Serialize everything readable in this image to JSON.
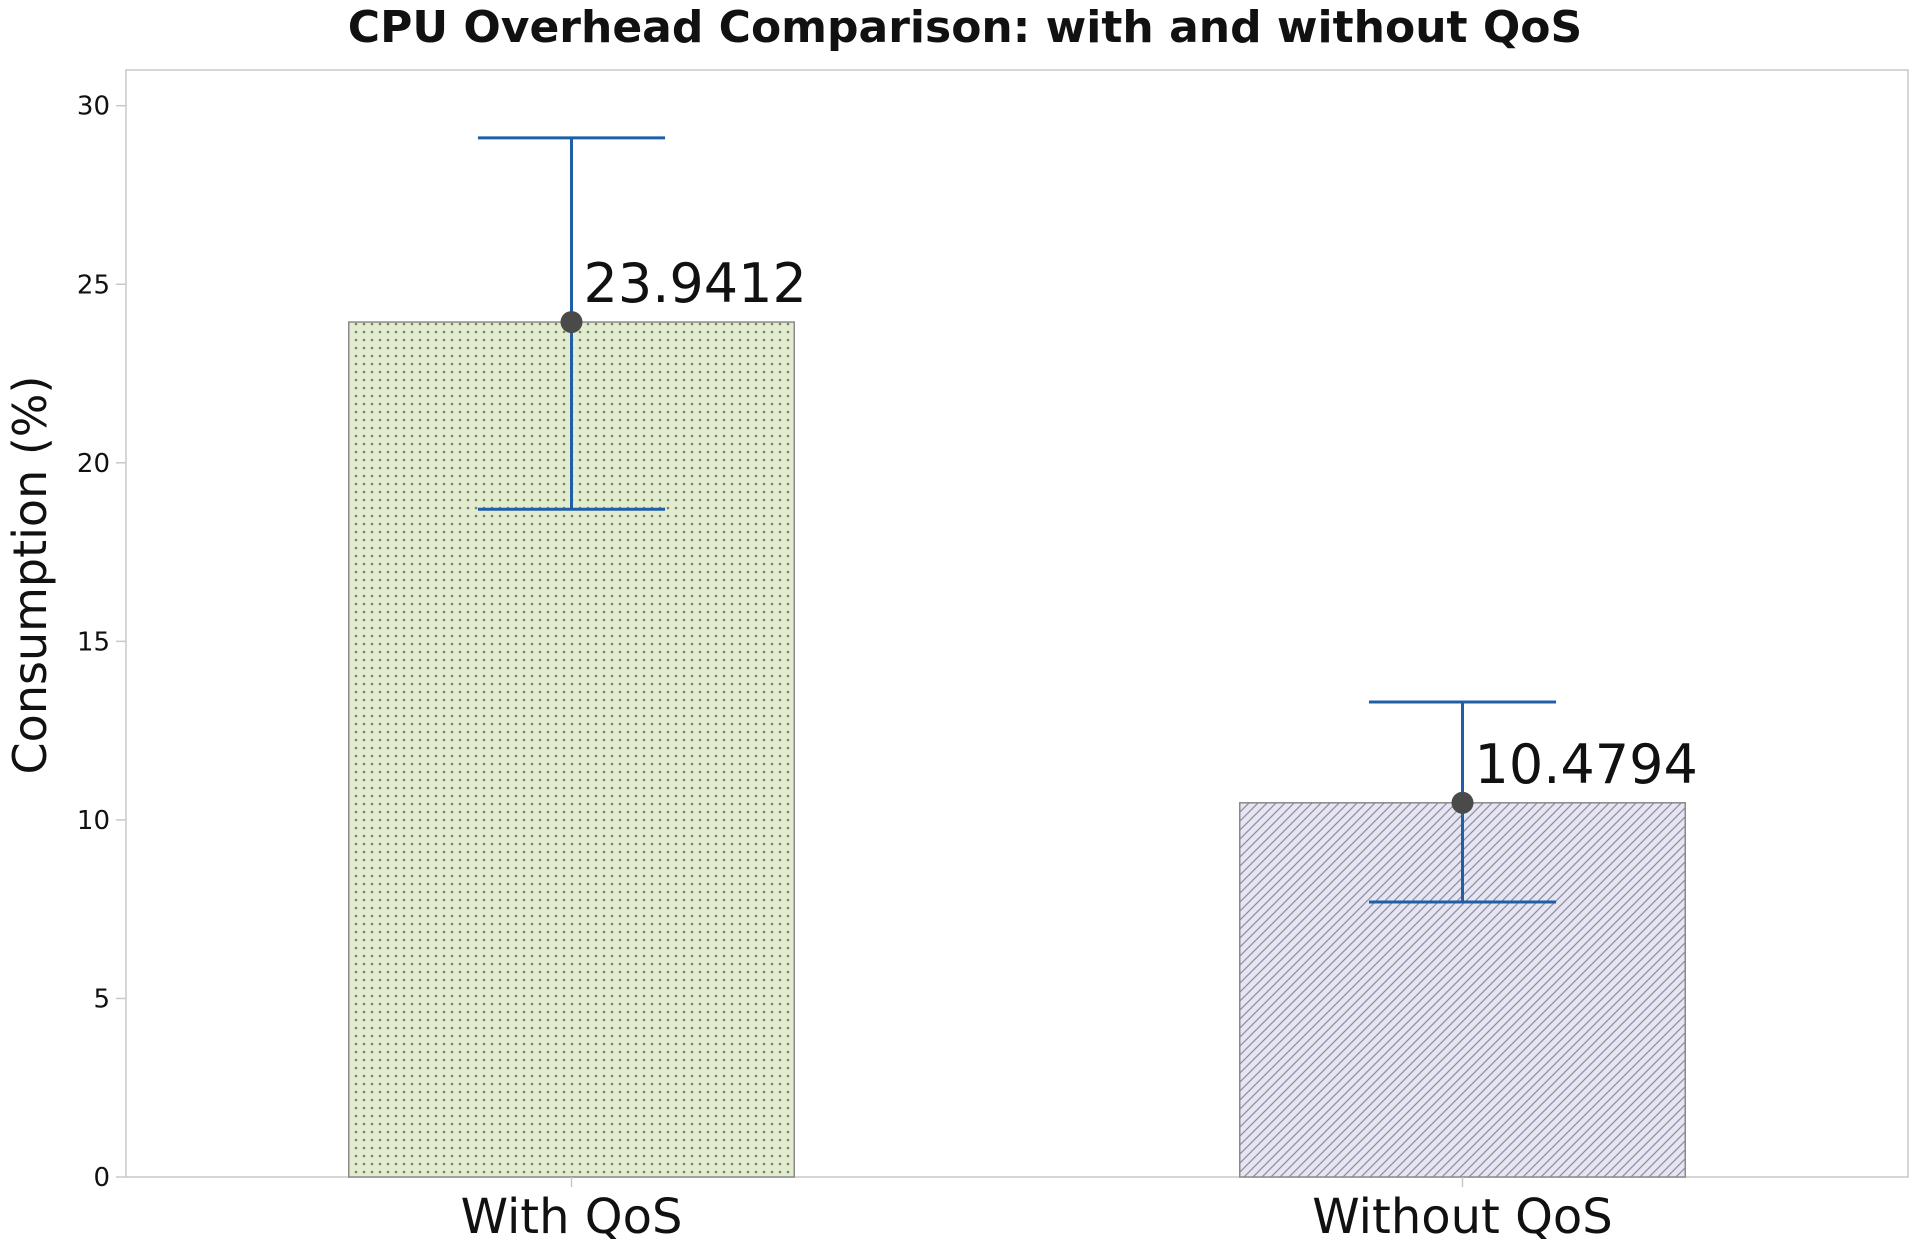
{
  "chart_data": {
    "type": "bar",
    "title": "CPU Overhead Comparison: with and without QoS",
    "xlabel": "",
    "ylabel": "Consumption (%)",
    "ylim": [
      0,
      31
    ],
    "yticks": [
      0,
      5,
      10,
      15,
      20,
      25,
      30
    ],
    "categories": [
      "With QoS",
      "Without QoS"
    ],
    "values": [
      23.9412,
      10.4794
    ],
    "value_labels": [
      "23.9412",
      "10.4794"
    ],
    "error_bars": [
      {
        "low": 18.7,
        "high": 29.1
      },
      {
        "low": 7.7,
        "high": 13.3
      }
    ],
    "grid": false,
    "legend": "none",
    "bar_styles": [
      {
        "fill": "#e3ecd0",
        "pattern": "dots",
        "pattern_color": "#6f8a5a",
        "stroke": "#8a8a8a"
      },
      {
        "fill": "#e7e6ef",
        "pattern": "diagonal-lines",
        "pattern_color": "#8a8ab0",
        "stroke": "#8a8a8a"
      }
    ],
    "colors": {
      "error_bar": "#1f5fa8",
      "marker": "#4a4a4a",
      "axis": "#c8c8c8"
    }
  }
}
